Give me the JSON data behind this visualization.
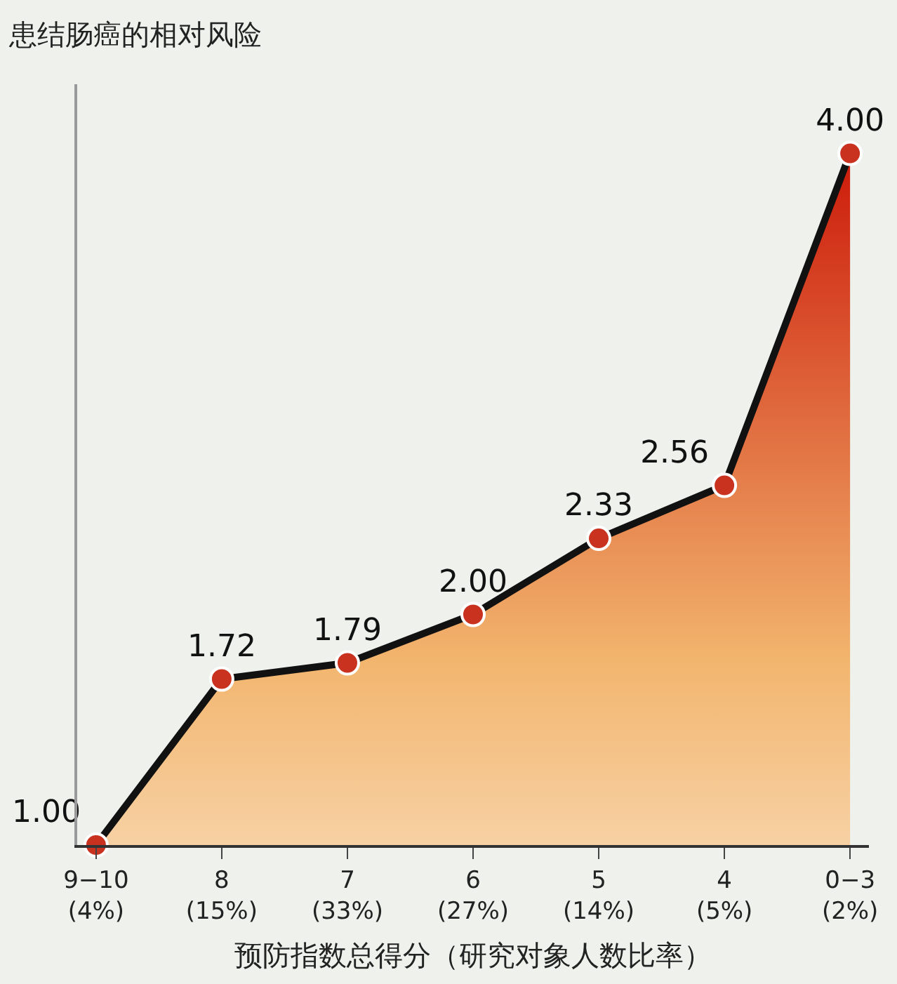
{
  "chart_data": {
    "type": "area",
    "title": "患结肠癌的相对风险",
    "xlabel": "预防指数总得分（研究对象人数比率）",
    "categories": [
      "9−10\n(4%)",
      "8\n(15%)",
      "7\n(33%)",
      "6\n(27%)",
      "5\n(14%)",
      "4\n(5%)",
      "0−3\n(2%)"
    ],
    "series": [
      {
        "color": "#111111",
        "colors": [
          "#c8321e",
          "#c8321e",
          "#c8321e",
          "#c8321e",
          "#c8321e",
          "#c8321e",
          "#c8321e"
        ],
        "values": [
          1.0,
          1.72,
          1.79,
          2.0,
          2.33,
          2.56,
          4.0
        ],
        "value_labels": [
          "1.00",
          "1.72",
          "1.79",
          "2.00",
          "2.33",
          "2.56",
          "4.00"
        ]
      }
    ],
    "ylim": [
      1,
      4.3
    ],
    "marker": "circle",
    "line_style": "solid",
    "grid": false,
    "legend": false
  }
}
